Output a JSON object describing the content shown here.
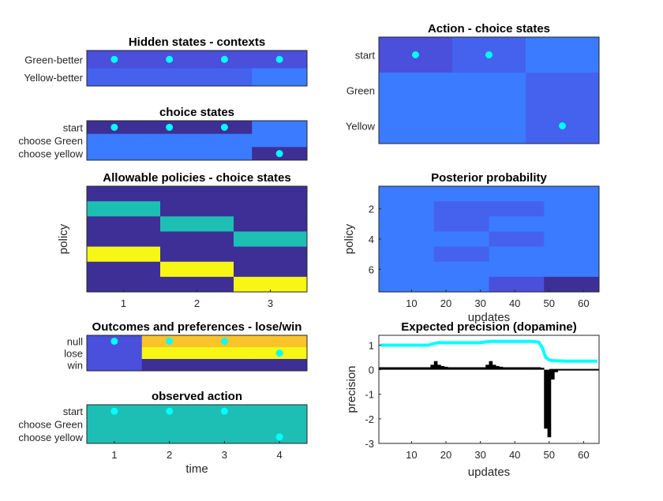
{
  "palette": {
    "dark": "#3d2f96",
    "blue": "#4a4fdc",
    "blue_mid": "#4462ee",
    "light_blue": "#3a7bff",
    "teal": "#1dbfb4",
    "yellow": "#f8f614",
    "orange": "#f9c42a",
    "dot": "#00ffff",
    "precision_line": "#00ffff",
    "bars": "#000000"
  },
  "chart_data": [
    {
      "id": "hidden",
      "type": "heatmap",
      "title": "Hidden states - contexts",
      "row_labels": [
        "Green-better",
        "Yellow-better"
      ],
      "cols": 4,
      "cells": [
        [
          "blue",
          "blue",
          "blue",
          "blue"
        ],
        [
          "blue_mid",
          "blue_mid",
          "blue_mid",
          "light_blue"
        ]
      ],
      "dots": [
        [
          0,
          0
        ],
        [
          1,
          0
        ],
        [
          2,
          0
        ],
        [
          3,
          0
        ]
      ]
    },
    {
      "id": "choice",
      "type": "heatmap",
      "title": "choice states",
      "row_labels": [
        "start",
        "choose Green",
        "choose yellow"
      ],
      "cols": 4,
      "cells": [
        [
          "dark",
          "dark",
          "dark",
          "light_blue"
        ],
        [
          "light_blue",
          "light_blue",
          "light_blue",
          "light_blue"
        ],
        [
          "light_blue",
          "light_blue",
          "light_blue",
          "dark"
        ]
      ],
      "dots": [
        [
          0,
          0
        ],
        [
          1,
          0
        ],
        [
          2,
          0
        ],
        [
          3,
          2
        ]
      ]
    },
    {
      "id": "policies",
      "type": "heatmap",
      "title": "Allowable policies - choice states",
      "ylabel": "policy",
      "cols": 3,
      "x_ticks": [
        "1",
        "2",
        "3"
      ],
      "cells": [
        [
          "dark",
          "dark",
          "dark"
        ],
        [
          "teal",
          "dark",
          "dark"
        ],
        [
          "dark",
          "teal",
          "dark"
        ],
        [
          "dark",
          "dark",
          "teal"
        ],
        [
          "yellow",
          "dark",
          "dark"
        ],
        [
          "dark",
          "yellow",
          "dark"
        ],
        [
          "dark",
          "dark",
          "yellow"
        ]
      ]
    },
    {
      "id": "outcomes",
      "type": "heatmap",
      "title": "Outcomes and preferences - lose/win",
      "row_labels": [
        "null",
        "lose",
        "win"
      ],
      "cols": 4,
      "cells": [
        [
          "blue",
          "orange",
          "orange",
          "orange"
        ],
        [
          "blue",
          "yellow",
          "yellow",
          "yellow"
        ],
        [
          "blue",
          "dark",
          "dark",
          "dark"
        ]
      ],
      "dots": [
        [
          0,
          0
        ],
        [
          1,
          0
        ],
        [
          2,
          0
        ],
        [
          3,
          1
        ]
      ]
    },
    {
      "id": "observed",
      "type": "heatmap",
      "title": "observed action",
      "row_labels": [
        "start",
        "choose Green",
        "choose yellow"
      ],
      "xlabel": "time",
      "x_ticks": [
        "1",
        "2",
        "3",
        "4"
      ],
      "cols": 4,
      "cells": [
        [
          "teal",
          "teal",
          "teal",
          "teal"
        ],
        [
          "teal",
          "teal",
          "teal",
          "teal"
        ],
        [
          "teal",
          "teal",
          "teal",
          "teal"
        ]
      ],
      "dots": [
        [
          0,
          0
        ],
        [
          1,
          0
        ],
        [
          2,
          0
        ],
        [
          3,
          2
        ]
      ]
    },
    {
      "id": "action",
      "type": "heatmap",
      "title": "Action - choice states",
      "row_labels": [
        "start",
        "Green",
        "Yellow"
      ],
      "cols": 3,
      "cells": [
        [
          "blue",
          "blue_mid",
          "light_blue"
        ],
        [
          "light_blue",
          "light_blue",
          "blue_mid"
        ],
        [
          "light_blue",
          "light_blue",
          "blue_mid"
        ]
      ],
      "dots": [
        [
          0,
          0
        ],
        [
          1,
          0
        ],
        [
          2,
          2
        ]
      ]
    },
    {
      "id": "posterior",
      "type": "heatmap",
      "title": "Posterior probability",
      "ylabel": "policy",
      "xlabel": "updates",
      "y_ticks": [
        "2",
        "4",
        "6"
      ],
      "x_ticks": [
        "10",
        "20",
        "30",
        "40",
        "50",
        "60"
      ],
      "xlim": [
        0.5,
        64.5
      ],
      "col_edges": [
        0.5,
        16.5,
        32.5,
        48.5,
        64.5
      ],
      "cells": [
        [
          "light_blue",
          "light_blue",
          "light_blue",
          "light_blue"
        ],
        [
          "light_blue",
          "blue_mid",
          "blue_mid",
          "light_blue"
        ],
        [
          "light_blue",
          "blue_mid",
          "light_blue",
          "light_blue"
        ],
        [
          "light_blue",
          "light_blue",
          "blue_mid",
          "light_blue"
        ],
        [
          "light_blue",
          "blue_mid",
          "light_blue",
          "light_blue"
        ],
        [
          "light_blue",
          "light_blue",
          "light_blue",
          "light_blue"
        ],
        [
          "light_blue",
          "light_blue",
          "blue",
          "dark"
        ]
      ]
    },
    {
      "id": "precision",
      "type": "bar",
      "title": "Expected precision (dopamine)",
      "xlabel": "updates",
      "ylabel": "precision",
      "xlim": [
        0.5,
        64.5
      ],
      "ylim": [
        -3,
        1.4
      ],
      "x_ticks": [
        "10",
        "20",
        "30",
        "40",
        "50",
        "60"
      ],
      "y_ticks": [
        "1",
        "0",
        "-1",
        "-2",
        "-3"
      ],
      "line_x": [
        1,
        15,
        16,
        17,
        18,
        30,
        31,
        32,
        33,
        34,
        45,
        46,
        47,
        48,
        49,
        50,
        51,
        55,
        64
      ],
      "line_y": [
        1.0,
        1.0,
        1.05,
        1.08,
        1.1,
        1.1,
        1.12,
        1.14,
        1.15,
        1.15,
        1.15,
        1.14,
        1.12,
        0.9,
        0.5,
        0.4,
        0.37,
        0.35,
        0.35
      ],
      "bars": [
        0.1,
        0.1,
        0.1,
        0.1,
        0.1,
        0.1,
        0.1,
        0.1,
        0.1,
        0.1,
        0.1,
        0.1,
        0.1,
        0.1,
        0.1,
        0.2,
        0.35,
        0.2,
        0.15,
        0.12,
        0.1,
        0.1,
        0.1,
        0.1,
        0.1,
        0.1,
        0.1,
        0.1,
        0.1,
        0.1,
        0.1,
        0.2,
        0.35,
        0.2,
        0.15,
        0.12,
        0.1,
        0.1,
        0.1,
        0.1,
        0.1,
        0.1,
        0.1,
        0.1,
        0.1,
        0.1,
        0.1,
        0.08,
        -2.4,
        -2.75,
        -0.4,
        -0.1,
        0,
        0,
        0,
        0,
        0,
        0,
        0,
        0,
        0,
        0,
        0,
        0
      ]
    }
  ]
}
